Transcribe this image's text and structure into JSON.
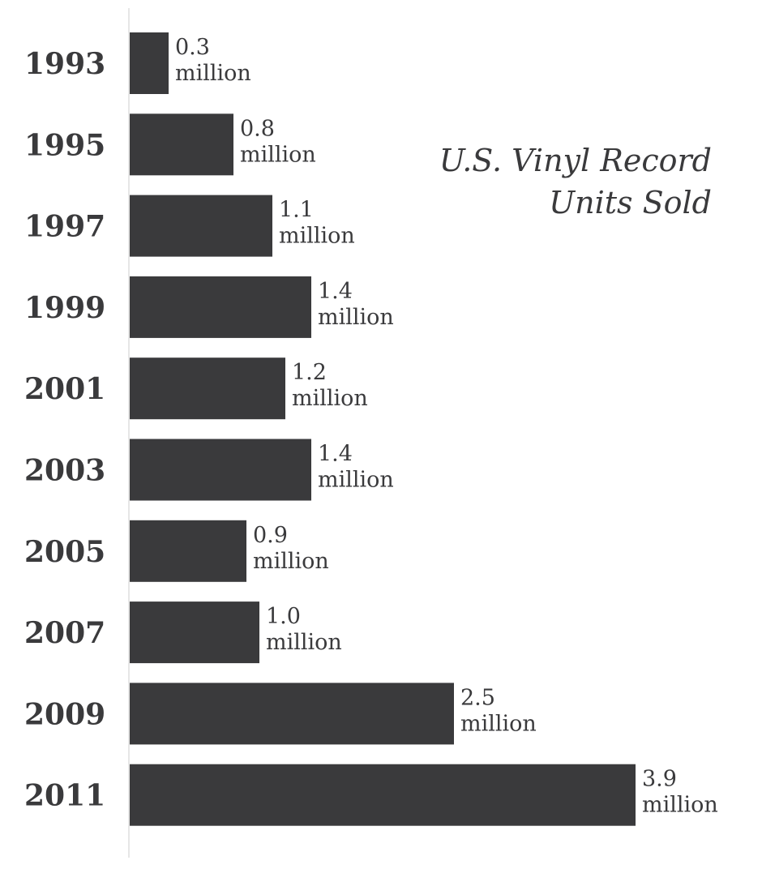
{
  "chart_data": {
    "type": "bar",
    "orientation": "horizontal",
    "title": [
      "U.S. Vinyl Record",
      "Units Sold"
    ],
    "xlabel": "",
    "ylabel": "",
    "categories": [
      "1993",
      "1995",
      "1997",
      "1999",
      "2001",
      "2003",
      "2005",
      "2007",
      "2009",
      "2011"
    ],
    "values": [
      0.3,
      0.8,
      1.1,
      1.4,
      1.2,
      1.4,
      0.9,
      1.0,
      2.5,
      3.9
    ],
    "value_labels": [
      "0.3",
      "0.8",
      "1.1",
      "1.4",
      "1.2",
      "1.4",
      "0.9",
      "1.0",
      "2.5",
      "3.9"
    ],
    "unit_label": "million",
    "grid": false,
    "legend": "none",
    "colors": {
      "bar": "#3a3a3c",
      "text": "#3a3a3c",
      "axis": "#cccccc"
    }
  }
}
